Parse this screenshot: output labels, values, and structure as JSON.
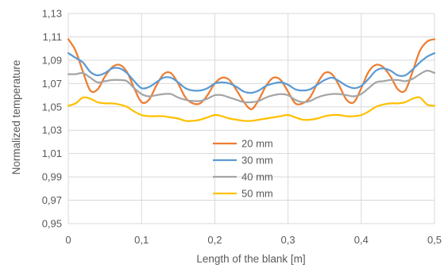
{
  "chart_data": {
    "type": "line",
    "title": "",
    "xlabel": "Length of the blank [m]",
    "ylabel": "Normalized temperature",
    "xlim": [
      0,
      0.5
    ],
    "ylim": [
      0.95,
      1.13
    ],
    "x_ticks": [
      0,
      0.1,
      0.2,
      0.3,
      0.4,
      0.5
    ],
    "x_tick_labels": [
      "0",
      "0,1",
      "0,2",
      "0,3",
      "0,4",
      "0,5"
    ],
    "y_ticks": [
      0.95,
      0.97,
      0.99,
      1.01,
      1.03,
      1.05,
      1.07,
      1.09,
      1.11,
      1.13
    ],
    "y_tick_labels": [
      "0,95",
      "0,97",
      "0,99",
      "1,01",
      "1,03",
      "1,05",
      "1,07",
      "1,09",
      "1,11",
      "1,13"
    ],
    "grid": true,
    "legend_position": "center",
    "series": [
      {
        "name": "20 mm",
        "color": "#ED7D31",
        "points": [
          [
            0,
            1.108
          ],
          [
            0.01,
            1.098
          ],
          [
            0.02,
            1.08
          ],
          [
            0.03,
            1.064
          ],
          [
            0.04,
            1.065
          ],
          [
            0.05,
            1.076
          ],
          [
            0.06,
            1.084
          ],
          [
            0.07,
            1.086
          ],
          [
            0.08,
            1.08
          ],
          [
            0.09,
            1.066
          ],
          [
            0.1,
            1.054
          ],
          [
            0.11,
            1.056
          ],
          [
            0.12,
            1.068
          ],
          [
            0.13,
            1.078
          ],
          [
            0.14,
            1.079
          ],
          [
            0.15,
            1.07
          ],
          [
            0.16,
            1.058
          ],
          [
            0.17,
            1.053
          ],
          [
            0.18,
            1.053
          ],
          [
            0.19,
            1.06
          ],
          [
            0.2,
            1.07
          ],
          [
            0.21,
            1.075
          ],
          [
            0.22,
            1.073
          ],
          [
            0.23,
            1.064
          ],
          [
            0.24,
            1.054
          ],
          [
            0.25,
            1.048
          ],
          [
            0.26,
            1.056
          ],
          [
            0.27,
            1.068
          ],
          [
            0.28,
            1.075
          ],
          [
            0.29,
            1.073
          ],
          [
            0.3,
            1.063
          ],
          [
            0.31,
            1.053
          ],
          [
            0.32,
            1.053
          ],
          [
            0.33,
            1.058
          ],
          [
            0.34,
            1.07
          ],
          [
            0.35,
            1.079
          ],
          [
            0.36,
            1.078
          ],
          [
            0.37,
            1.068
          ],
          [
            0.38,
            1.056
          ],
          [
            0.39,
            1.054
          ],
          [
            0.4,
            1.066
          ],
          [
            0.41,
            1.08
          ],
          [
            0.42,
            1.086
          ],
          [
            0.43,
            1.084
          ],
          [
            0.44,
            1.076
          ],
          [
            0.45,
            1.065
          ],
          [
            0.46,
            1.064
          ],
          [
            0.47,
            1.08
          ],
          [
            0.48,
            1.098
          ],
          [
            0.49,
            1.106
          ],
          [
            0.5,
            1.108
          ]
        ]
      },
      {
        "name": "30 mm",
        "color": "#5B9BD5",
        "points": [
          [
            0,
            1.096
          ],
          [
            0.01,
            1.092
          ],
          [
            0.02,
            1.088
          ],
          [
            0.03,
            1.08
          ],
          [
            0.04,
            1.077
          ],
          [
            0.05,
            1.079
          ],
          [
            0.06,
            1.083
          ],
          [
            0.07,
            1.083
          ],
          [
            0.08,
            1.079
          ],
          [
            0.09,
            1.072
          ],
          [
            0.1,
            1.066
          ],
          [
            0.11,
            1.067
          ],
          [
            0.12,
            1.071
          ],
          [
            0.13,
            1.075
          ],
          [
            0.14,
            1.075
          ],
          [
            0.15,
            1.071
          ],
          [
            0.16,
            1.066
          ],
          [
            0.17,
            1.064
          ],
          [
            0.18,
            1.064
          ],
          [
            0.19,
            1.066
          ],
          [
            0.2,
            1.07
          ],
          [
            0.21,
            1.071
          ],
          [
            0.22,
            1.07
          ],
          [
            0.23,
            1.067
          ],
          [
            0.24,
            1.063
          ],
          [
            0.25,
            1.062
          ],
          [
            0.26,
            1.064
          ],
          [
            0.27,
            1.068
          ],
          [
            0.28,
            1.07
          ],
          [
            0.29,
            1.071
          ],
          [
            0.3,
            1.069
          ],
          [
            0.31,
            1.065
          ],
          [
            0.32,
            1.064
          ],
          [
            0.33,
            1.065
          ],
          [
            0.34,
            1.069
          ],
          [
            0.35,
            1.073
          ],
          [
            0.36,
            1.075
          ],
          [
            0.37,
            1.072
          ],
          [
            0.38,
            1.068
          ],
          [
            0.39,
            1.066
          ],
          [
            0.4,
            1.068
          ],
          [
            0.41,
            1.074
          ],
          [
            0.42,
            1.081
          ],
          [
            0.43,
            1.083
          ],
          [
            0.44,
            1.081
          ],
          [
            0.45,
            1.077
          ],
          [
            0.46,
            1.077
          ],
          [
            0.47,
            1.082
          ],
          [
            0.48,
            1.088
          ],
          [
            0.49,
            1.093
          ],
          [
            0.5,
            1.096
          ]
        ]
      },
      {
        "name": "40 mm",
        "color": "#A5A5A5",
        "points": [
          [
            0,
            1.078
          ],
          [
            0.01,
            1.078
          ],
          [
            0.02,
            1.079
          ],
          [
            0.03,
            1.075
          ],
          [
            0.04,
            1.071
          ],
          [
            0.05,
            1.072
          ],
          [
            0.06,
            1.073
          ],
          [
            0.07,
            1.073
          ],
          [
            0.08,
            1.072
          ],
          [
            0.09,
            1.066
          ],
          [
            0.1,
            1.061
          ],
          [
            0.11,
            1.059
          ],
          [
            0.12,
            1.06
          ],
          [
            0.13,
            1.061
          ],
          [
            0.14,
            1.061
          ],
          [
            0.15,
            1.058
          ],
          [
            0.16,
            1.056
          ],
          [
            0.17,
            1.055
          ],
          [
            0.18,
            1.055
          ],
          [
            0.19,
            1.057
          ],
          [
            0.2,
            1.06
          ],
          [
            0.21,
            1.06
          ],
          [
            0.22,
            1.058
          ],
          [
            0.23,
            1.056
          ],
          [
            0.24,
            1.054
          ],
          [
            0.25,
            1.054
          ],
          [
            0.26,
            1.055
          ],
          [
            0.27,
            1.058
          ],
          [
            0.28,
            1.06
          ],
          [
            0.29,
            1.061
          ],
          [
            0.3,
            1.06
          ],
          [
            0.31,
            1.056
          ],
          [
            0.32,
            1.054
          ],
          [
            0.33,
            1.055
          ],
          [
            0.34,
            1.058
          ],
          [
            0.35,
            1.06
          ],
          [
            0.36,
            1.061
          ],
          [
            0.37,
            1.061
          ],
          [
            0.38,
            1.06
          ],
          [
            0.39,
            1.059
          ],
          [
            0.4,
            1.061
          ],
          [
            0.41,
            1.066
          ],
          [
            0.42,
            1.071
          ],
          [
            0.43,
            1.072
          ],
          [
            0.44,
            1.073
          ],
          [
            0.45,
            1.073
          ],
          [
            0.46,
            1.072
          ],
          [
            0.47,
            1.074
          ],
          [
            0.48,
            1.078
          ],
          [
            0.49,
            1.081
          ],
          [
            0.5,
            1.079
          ]
        ]
      },
      {
        "name": "50 mm",
        "color": "#FFC000",
        "points": [
          [
            0,
            1.051
          ],
          [
            0.01,
            1.053
          ],
          [
            0.02,
            1.058
          ],
          [
            0.03,
            1.057
          ],
          [
            0.04,
            1.054
          ],
          [
            0.05,
            1.053
          ],
          [
            0.06,
            1.053
          ],
          [
            0.07,
            1.052
          ],
          [
            0.08,
            1.05
          ],
          [
            0.09,
            1.046
          ],
          [
            0.1,
            1.043
          ],
          [
            0.11,
            1.042
          ],
          [
            0.12,
            1.042
          ],
          [
            0.13,
            1.042
          ],
          [
            0.14,
            1.041
          ],
          [
            0.15,
            1.04
          ],
          [
            0.16,
            1.038
          ],
          [
            0.17,
            1.038
          ],
          [
            0.18,
            1.039
          ],
          [
            0.19,
            1.041
          ],
          [
            0.2,
            1.043
          ],
          [
            0.21,
            1.042
          ],
          [
            0.22,
            1.04
          ],
          [
            0.23,
            1.039
          ],
          [
            0.24,
            1.038
          ],
          [
            0.25,
            1.038
          ],
          [
            0.26,
            1.039
          ],
          [
            0.27,
            1.04
          ],
          [
            0.28,
            1.041
          ],
          [
            0.29,
            1.042
          ],
          [
            0.3,
            1.043
          ],
          [
            0.31,
            1.041
          ],
          [
            0.32,
            1.039
          ],
          [
            0.33,
            1.039
          ],
          [
            0.34,
            1.04
          ],
          [
            0.35,
            1.042
          ],
          [
            0.36,
            1.043
          ],
          [
            0.37,
            1.043
          ],
          [
            0.38,
            1.042
          ],
          [
            0.39,
            1.042
          ],
          [
            0.4,
            1.043
          ],
          [
            0.41,
            1.046
          ],
          [
            0.42,
            1.05
          ],
          [
            0.43,
            1.052
          ],
          [
            0.44,
            1.053
          ],
          [
            0.45,
            1.053
          ],
          [
            0.46,
            1.054
          ],
          [
            0.47,
            1.057
          ],
          [
            0.48,
            1.058
          ],
          [
            0.49,
            1.052
          ],
          [
            0.5,
            1.051
          ]
        ]
      }
    ]
  }
}
